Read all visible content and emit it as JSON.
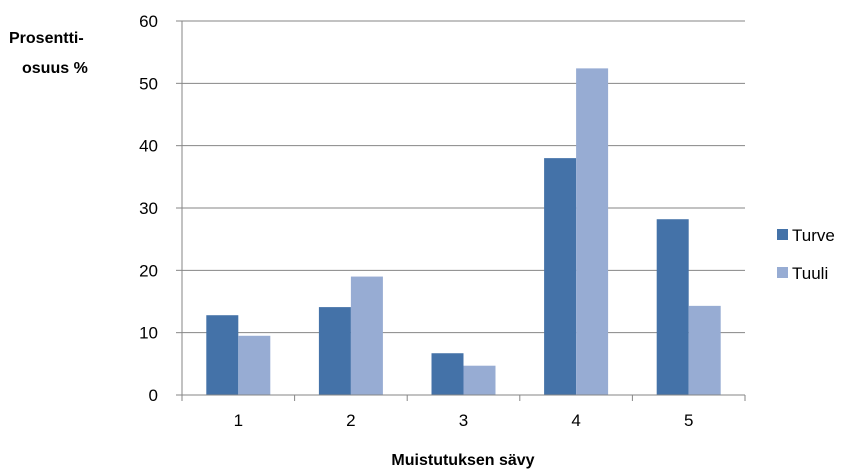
{
  "chart_data": {
    "type": "bar",
    "title": "",
    "ylabel_lines": [
      "Prosentti-",
      "osuus %"
    ],
    "xlabel": "Muistutuksen sävy",
    "categories": [
      "1",
      "2",
      "3",
      "4",
      "5"
    ],
    "ylim": [
      0,
      60
    ],
    "yticks": [
      0,
      10,
      20,
      30,
      40,
      50,
      60
    ],
    "grid": true,
    "legend_position": "right",
    "series": [
      {
        "name": "Turve",
        "color": "#4472a8",
        "values": [
          12.8,
          14.1,
          6.7,
          38.0,
          28.2
        ]
      },
      {
        "name": "Tuuli",
        "color": "#97acd3",
        "values": [
          9.5,
          19.0,
          4.7,
          52.4,
          14.3
        ]
      }
    ]
  }
}
